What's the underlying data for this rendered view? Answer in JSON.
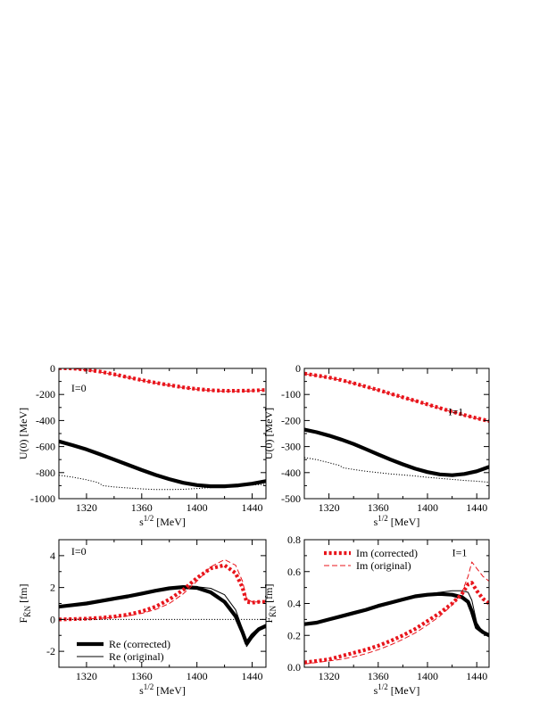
{
  "chart_data": [
    {
      "type": "line",
      "panel_label": "I=0",
      "ylabel": "U(0) [MeV]",
      "xlabel": "s^{1/2} [MeV]",
      "xlim": [
        1300,
        1450
      ],
      "ylim": [
        -1000,
        0
      ],
      "xticks": [
        1320,
        1360,
        1400,
        1440
      ],
      "xtick_labels": [
        "1320",
        "1360",
        "1400",
        "1440"
      ],
      "yticks": [
        -1000,
        -800,
        -600,
        -400,
        -200,
        0
      ],
      "ytick_labels": [
        "-1000",
        "-800",
        "-600",
        "-400",
        "-200",
        "0"
      ],
      "series": [
        {
          "style": "red-thick-dotted",
          "x": [
            1300,
            1310,
            1320,
            1330,
            1340,
            1350,
            1360,
            1370,
            1380,
            1390,
            1400,
            1410,
            1420,
            1430,
            1440,
            1450
          ],
          "y": [
            2,
            0,
            -10,
            -25,
            -45,
            -68,
            -90,
            -110,
            -128,
            -145,
            -158,
            -168,
            -172,
            -172,
            -170,
            -165
          ]
        },
        {
          "style": "red-thin-dashed",
          "x": [
            1300,
            1310,
            1320,
            1330,
            1340,
            1350,
            1360,
            1370,
            1380,
            1390,
            1400,
            1410,
            1420,
            1430,
            1440,
            1450
          ],
          "y": [
            2,
            0,
            -12,
            -28,
            -48,
            -70,
            -92,
            -112,
            -130,
            -147,
            -160,
            -170,
            -175,
            -176,
            -172,
            -166
          ]
        },
        {
          "style": "black-thick",
          "x": [
            1300,
            1310,
            1320,
            1330,
            1340,
            1350,
            1360,
            1370,
            1380,
            1390,
            1400,
            1410,
            1420,
            1430,
            1440,
            1450
          ],
          "y": [
            -560,
            -590,
            -622,
            -660,
            -700,
            -740,
            -780,
            -818,
            -850,
            -878,
            -896,
            -905,
            -905,
            -898,
            -885,
            -865
          ]
        },
        {
          "style": "black-thin",
          "x": [
            1300,
            1310,
            1320,
            1330,
            1340,
            1350,
            1360,
            1370,
            1380,
            1390,
            1400,
            1410,
            1420,
            1430,
            1440,
            1450
          ],
          "y": [
            -558,
            -588,
            -620,
            -658,
            -698,
            -738,
            -778,
            -816,
            -848,
            -876,
            -894,
            -903,
            -903,
            -896,
            -883,
            -863
          ]
        },
        {
          "style": "black-dotted",
          "x": [
            1300,
            1310,
            1320,
            1328,
            1332,
            1340,
            1350,
            1360,
            1370,
            1380,
            1390,
            1400,
            1410,
            1420,
            1430,
            1440,
            1450
          ],
          "y": [
            -820,
            -835,
            -855,
            -875,
            -900,
            -910,
            -918,
            -925,
            -930,
            -930,
            -928,
            -922,
            -915,
            -908,
            -900,
            -895,
            -890
          ]
        }
      ]
    },
    {
      "type": "line",
      "panel_label": "I=1",
      "ylabel": "U(0) [MeV]",
      "xlabel": "s^{1/2} [MeV]",
      "xlim": [
        1300,
        1450
      ],
      "ylim": [
        -500,
        0
      ],
      "xticks": [
        1320,
        1360,
        1400,
        1440
      ],
      "xtick_labels": [
        "1320",
        "1360",
        "1400",
        "1440"
      ],
      "yticks": [
        -500,
        -400,
        -300,
        -200,
        -100,
        0
      ],
      "ytick_labels": [
        "-500",
        "-400",
        "-300",
        "-200",
        "-100",
        "0"
      ],
      "series": [
        {
          "style": "red-thick-dotted",
          "x": [
            1300,
            1310,
            1320,
            1330,
            1340,
            1350,
            1360,
            1370,
            1380,
            1390,
            1400,
            1410,
            1420,
            1430,
            1440,
            1450
          ],
          "y": [
            -20,
            -27,
            -35,
            -45,
            -57,
            -70,
            -83,
            -97,
            -111,
            -124,
            -138,
            -152,
            -166,
            -179,
            -191,
            -202
          ]
        },
        {
          "style": "red-thin-dashed",
          "x": [
            1300,
            1310,
            1320,
            1330,
            1340,
            1350,
            1360,
            1370,
            1380,
            1390,
            1400,
            1410,
            1420,
            1430,
            1440,
            1450
          ],
          "y": [
            -21,
            -28,
            -36,
            -46,
            -58,
            -71,
            -84,
            -98,
            -112,
            -125,
            -139,
            -153,
            -167,
            -180,
            -192,
            -203
          ]
        },
        {
          "style": "black-thick",
          "x": [
            1300,
            1310,
            1320,
            1330,
            1340,
            1350,
            1360,
            1370,
            1380,
            1390,
            1400,
            1410,
            1420,
            1430,
            1440,
            1450
          ],
          "y": [
            -235,
            -245,
            -258,
            -273,
            -290,
            -310,
            -330,
            -350,
            -368,
            -385,
            -398,
            -407,
            -410,
            -405,
            -395,
            -378
          ]
        },
        {
          "style": "black-thin",
          "x": [
            1300,
            1310,
            1320,
            1330,
            1340,
            1350,
            1360,
            1370,
            1380,
            1390,
            1400,
            1410,
            1420,
            1430,
            1440,
            1450
          ],
          "y": [
            -234,
            -244,
            -257,
            -272,
            -289,
            -309,
            -329,
            -349,
            -367,
            -384,
            -397,
            -406,
            -409,
            -404,
            -394,
            -377
          ]
        },
        {
          "style": "black-dotted",
          "x": [
            1300,
            1310,
            1320,
            1328,
            1332,
            1340,
            1350,
            1360,
            1370,
            1380,
            1390,
            1400,
            1410,
            1420,
            1430,
            1440,
            1450
          ],
          "y": [
            -342,
            -350,
            -362,
            -372,
            -382,
            -388,
            -395,
            -400,
            -405,
            -409,
            -413,
            -418,
            -422,
            -426,
            -430,
            -433,
            -437
          ]
        }
      ]
    },
    {
      "type": "line",
      "panel_label": "I=0",
      "ylabel": "F_{K̄N} [fm]",
      "xlabel": "s^{1/2} [MeV]",
      "xlim": [
        1300,
        1450
      ],
      "ylim": [
        -3,
        5
      ],
      "xticks": [
        1320,
        1360,
        1400,
        1440
      ],
      "xtick_labels": [
        "1320",
        "1360",
        "1400",
        "1440"
      ],
      "yticks": [
        -2,
        0,
        2,
        4
      ],
      "ytick_labels": [
        "-2",
        "0",
        "2",
        "4"
      ],
      "legend": [
        "Re (corrected)",
        "Re (original)"
      ],
      "series": [
        {
          "name": "Re (corrected)",
          "style": "black-thick",
          "x": [
            1300,
            1310,
            1320,
            1330,
            1340,
            1350,
            1360,
            1370,
            1380,
            1390,
            1400,
            1410,
            1420,
            1428,
            1433,
            1436,
            1440,
            1445,
            1450
          ],
          "y": [
            0.8,
            0.9,
            1.0,
            1.15,
            1.3,
            1.45,
            1.62,
            1.8,
            1.95,
            2.03,
            1.98,
            1.7,
            1.1,
            0.2,
            -0.8,
            -1.5,
            -1.0,
            -0.6,
            -0.4
          ]
        },
        {
          "name": "Re (original)",
          "style": "black-thin",
          "x": [
            1300,
            1310,
            1320,
            1330,
            1340,
            1350,
            1360,
            1370,
            1380,
            1390,
            1400,
            1410,
            1420,
            1428,
            1433,
            1436,
            1440,
            1445,
            1450
          ],
          "y": [
            0.8,
            0.9,
            1.0,
            1.15,
            1.3,
            1.45,
            1.62,
            1.78,
            1.92,
            2.02,
            2.05,
            1.95,
            1.55,
            0.6,
            -0.6,
            -1.7,
            -1.2,
            -0.7,
            -0.5
          ]
        },
        {
          "style": "red-thick-dotted",
          "x": [
            1300,
            1310,
            1320,
            1330,
            1340,
            1350,
            1360,
            1370,
            1380,
            1390,
            1400,
            1410,
            1420,
            1428,
            1433,
            1436,
            1440,
            1445,
            1450
          ],
          "y": [
            0.0,
            0.02,
            0.05,
            0.1,
            0.18,
            0.3,
            0.5,
            0.8,
            1.25,
            1.85,
            2.6,
            3.2,
            3.4,
            2.9,
            2.0,
            1.1,
            1.05,
            1.1,
            1.1
          ]
        },
        {
          "style": "red-thin-dashed",
          "x": [
            1300,
            1310,
            1320,
            1330,
            1340,
            1350,
            1360,
            1370,
            1380,
            1390,
            1400,
            1410,
            1420,
            1428,
            1433,
            1436,
            1440,
            1445,
            1450
          ],
          "y": [
            0.0,
            0.01,
            0.03,
            0.07,
            0.13,
            0.22,
            0.38,
            0.62,
            1.0,
            1.6,
            2.4,
            3.3,
            3.75,
            3.4,
            2.4,
            1.3,
            1.1,
            1.1,
            1.1
          ]
        },
        {
          "style": "black-dotted",
          "x": [
            1300,
            1450
          ],
          "y": [
            0,
            0
          ]
        }
      ]
    },
    {
      "type": "line",
      "panel_label": "I=1",
      "ylabel": "F_{K̄N} [fm]",
      "xlabel": "s^{1/2} [MeV]",
      "xlim": [
        1300,
        1450
      ],
      "ylim": [
        0,
        0.8
      ],
      "xticks": [
        1320,
        1360,
        1400,
        1440
      ],
      "xtick_labels": [
        "1320",
        "1360",
        "1400",
        "1440"
      ],
      "yticks": [
        0,
        0.2,
        0.4,
        0.6,
        0.8
      ],
      "ytick_labels": [
        "0.0",
        "0.2",
        "0.4",
        "0.6",
        "0.8"
      ],
      "legend": [
        "Im (corrected)",
        "Im (original)"
      ],
      "series": [
        {
          "style": "black-thick",
          "x": [
            1300,
            1310,
            1320,
            1330,
            1340,
            1350,
            1360,
            1370,
            1380,
            1390,
            1400,
            1410,
            1420,
            1428,
            1433,
            1436,
            1440,
            1445,
            1450
          ],
          "y": [
            0.27,
            0.28,
            0.3,
            0.32,
            0.34,
            0.36,
            0.385,
            0.405,
            0.425,
            0.445,
            0.455,
            0.46,
            0.455,
            0.44,
            0.41,
            0.35,
            0.25,
            0.22,
            0.2
          ]
        },
        {
          "style": "black-thin",
          "x": [
            1300,
            1310,
            1320,
            1330,
            1340,
            1350,
            1360,
            1370,
            1380,
            1390,
            1400,
            1410,
            1420,
            1428,
            1433,
            1436,
            1440,
            1445,
            1450
          ],
          "y": [
            0.27,
            0.28,
            0.3,
            0.325,
            0.345,
            0.365,
            0.385,
            0.405,
            0.425,
            0.445,
            0.46,
            0.47,
            0.48,
            0.48,
            0.47,
            0.42,
            0.28,
            0.22,
            0.2
          ]
        },
        {
          "name": "Im (corrected)",
          "style": "red-thick-dotted",
          "x": [
            1300,
            1310,
            1320,
            1330,
            1340,
            1350,
            1360,
            1370,
            1380,
            1390,
            1400,
            1410,
            1420,
            1428,
            1433,
            1436,
            1440,
            1445,
            1450
          ],
          "y": [
            0.03,
            0.04,
            0.05,
            0.07,
            0.09,
            0.11,
            0.135,
            0.165,
            0.2,
            0.24,
            0.29,
            0.34,
            0.4,
            0.46,
            0.52,
            0.53,
            0.48,
            0.43,
            0.4
          ]
        },
        {
          "name": "Im (original)",
          "style": "red-thin-dashed",
          "x": [
            1300,
            1310,
            1320,
            1330,
            1340,
            1350,
            1360,
            1370,
            1380,
            1390,
            1400,
            1410,
            1420,
            1428,
            1433,
            1436,
            1440,
            1445,
            1450
          ],
          "y": [
            0.02,
            0.03,
            0.04,
            0.05,
            0.065,
            0.085,
            0.11,
            0.14,
            0.175,
            0.215,
            0.265,
            0.32,
            0.39,
            0.47,
            0.57,
            0.66,
            0.62,
            0.57,
            0.54
          ]
        }
      ]
    }
  ]
}
